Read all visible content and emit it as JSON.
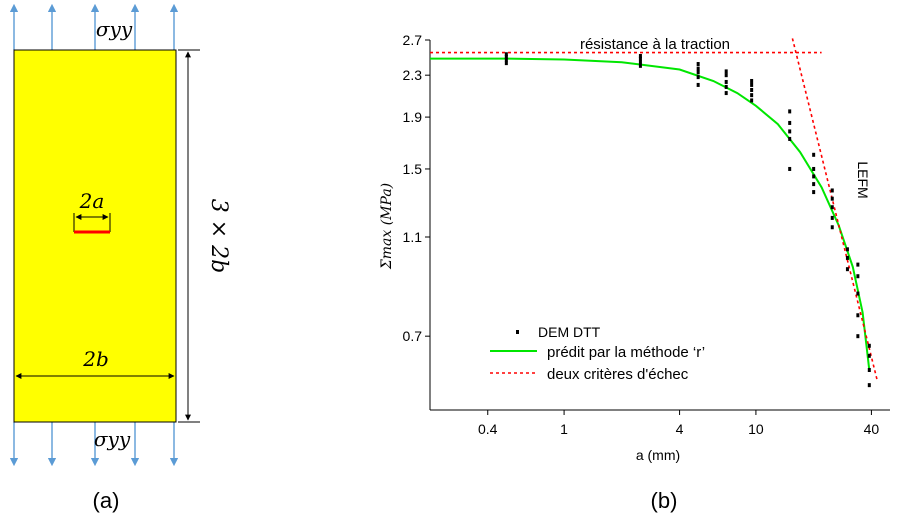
{
  "panel_a": {
    "caption": "(a)",
    "sigma_top": "σyy",
    "sigma_bottom": "σyy",
    "crack_label": "2a",
    "width_label": "2b",
    "height_label": "3 × 2b",
    "colors": {
      "specimen": "#ffff00",
      "crack": "#ff0000",
      "arrow": "#5b9bd5"
    }
  },
  "panel_b": {
    "caption": "(b)",
    "chart_data": {
      "type": "scatter",
      "xscale": "log",
      "yscale": "log",
      "xlabel": "a (mm)",
      "ylabel": "Σmax (MPa)",
      "xlim": [
        0.2,
        50
      ],
      "ylim": [
        0.5,
        2.7
      ],
      "xticks": [
        0.4,
        1,
        4,
        10,
        40
      ],
      "xtick_labels": [
        "0.4",
        "1",
        "4",
        "10",
        "40"
      ],
      "yticks": [
        0.7,
        1.1,
        1.5,
        1.9,
        2.3,
        2.7
      ],
      "ytick_labels": [
        "0.7",
        "1.1",
        "1.5",
        "1.9",
        "2.3",
        "2.7"
      ],
      "annotations": {
        "tensile": "résistance à la traction",
        "lefm": "LEFM"
      },
      "legend": {
        "placement": "bottom-left",
        "items": [
          {
            "label": "DEM DTT",
            "kind": "marker"
          },
          {
            "label": "prédit par la méthode ‘r’",
            "kind": "solid"
          },
          {
            "label": "deux critères d'échec",
            "kind": "dashed"
          }
        ]
      },
      "series": [
        {
          "name": "DEM DTT",
          "kind": "scatter",
          "color": "#000000",
          "points": [
            [
              0.5,
              2.43
            ],
            [
              0.5,
              2.47
            ],
            [
              0.5,
              2.5
            ],
            [
              0.5,
              2.53
            ],
            [
              2.5,
              2.4
            ],
            [
              2.5,
              2.44
            ],
            [
              2.5,
              2.48
            ],
            [
              2.5,
              2.51
            ],
            [
              5,
              2.2
            ],
            [
              5,
              2.28
            ],
            [
              5,
              2.33
            ],
            [
              5,
              2.37
            ],
            [
              5,
              2.42
            ],
            [
              7,
              2.12
            ],
            [
              7,
              2.18
            ],
            [
              7,
              2.23
            ],
            [
              7,
              2.3
            ],
            [
              7,
              2.34
            ],
            [
              9.5,
              2.05
            ],
            [
              9.5,
              2.1
            ],
            [
              9.5,
              2.15
            ],
            [
              9.5,
              2.2
            ],
            [
              9.5,
              2.24
            ],
            [
              15,
              1.5
            ],
            [
              15,
              1.72
            ],
            [
              15,
              1.78
            ],
            [
              15,
              1.85
            ],
            [
              15,
              1.95
            ],
            [
              20,
              1.35
            ],
            [
              20,
              1.4
            ],
            [
              20,
              1.45
            ],
            [
              20,
              1.5
            ],
            [
              20,
              1.6
            ],
            [
              25,
              1.15
            ],
            [
              25,
              1.2
            ],
            [
              25,
              1.26
            ],
            [
              25,
              1.31
            ],
            [
              25,
              1.36
            ],
            [
              30,
              0.95
            ],
            [
              30,
              1.0
            ],
            [
              30,
              1.04
            ],
            [
              34,
              0.7
            ],
            [
              34,
              0.77
            ],
            [
              34,
              0.85
            ],
            [
              34,
              0.92
            ],
            [
              34,
              0.97
            ],
            [
              39,
              0.56
            ],
            [
              39,
              0.6
            ],
            [
              39,
              0.64
            ],
            [
              39,
              0.67
            ]
          ]
        },
        {
          "name": "prédit par la méthode ‘r’",
          "kind": "line",
          "color": "#00e600",
          "points": [
            [
              0.2,
              2.48
            ],
            [
              0.5,
              2.48
            ],
            [
              1,
              2.47
            ],
            [
              2,
              2.44
            ],
            [
              4,
              2.36
            ],
            [
              6,
              2.24
            ],
            [
              8,
              2.12
            ],
            [
              10,
              2.0
            ],
            [
              13,
              1.84
            ],
            [
              17,
              1.62
            ],
            [
              22,
              1.38
            ],
            [
              27,
              1.16
            ],
            [
              32,
              0.96
            ],
            [
              36,
              0.78
            ],
            [
              39,
              0.6
            ]
          ]
        },
        {
          "name": "deux critères d'échec",
          "kind": "dashed",
          "color": "#ff0000",
          "segments": [
            [
              [
                0.2,
                2.55
              ],
              [
                22,
                2.55
              ]
            ],
            [
              [
                15.5,
                2.72
              ],
              [
                43,
                0.57
              ]
            ]
          ]
        }
      ]
    }
  }
}
